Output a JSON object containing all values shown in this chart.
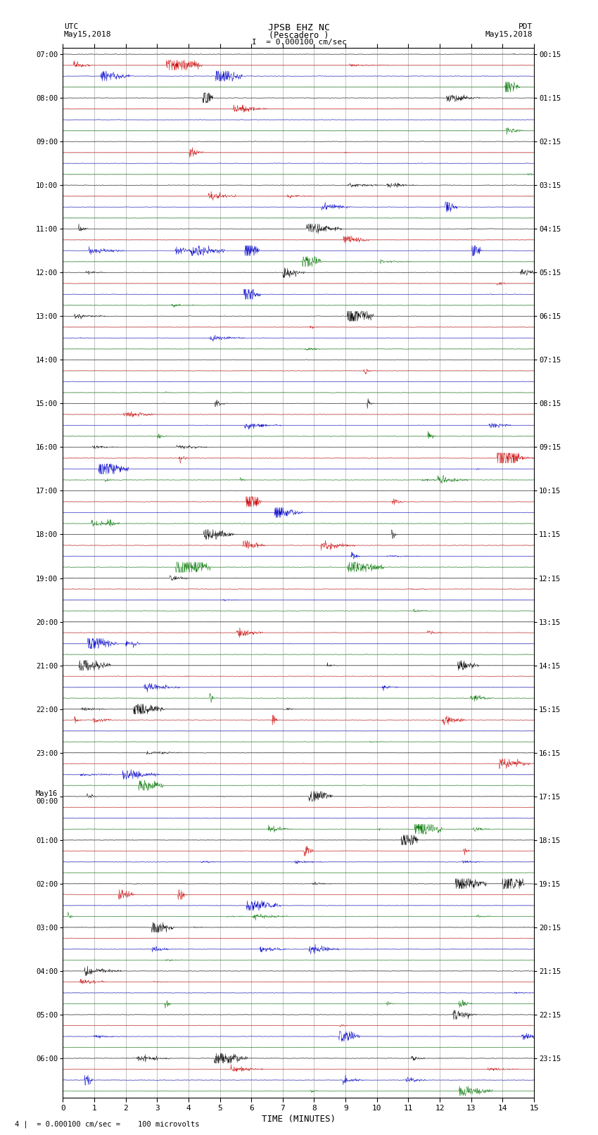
{
  "title_line1": "JPSB EHZ NC",
  "title_line2": "(Pescadero )",
  "scale_text": "I  = 0.000100 cm/sec",
  "bottom_text": "= 0.000100 cm/sec =    100 microvolts",
  "xlabel": "TIME (MINUTES)",
  "utc_line1": "UTC",
  "utc_line2": "May15,2018",
  "pdt_line1": "PDT",
  "pdt_line2": "May15,2018",
  "left_times": [
    "07:00",
    "",
    "",
    "",
    "08:00",
    "",
    "",
    "",
    "09:00",
    "",
    "",
    "",
    "10:00",
    "",
    "",
    "",
    "11:00",
    "",
    "",
    "",
    "12:00",
    "",
    "",
    "",
    "13:00",
    "",
    "",
    "",
    "14:00",
    "",
    "",
    "",
    "15:00",
    "",
    "",
    "",
    "16:00",
    "",
    "",
    "",
    "17:00",
    "",
    "",
    "",
    "18:00",
    "",
    "",
    "",
    "19:00",
    "",
    "",
    "",
    "20:00",
    "",
    "",
    "",
    "21:00",
    "",
    "",
    "",
    "22:00",
    "",
    "",
    "",
    "23:00",
    "",
    "",
    "",
    "May16\n00:00",
    "",
    "",
    "",
    "01:00",
    "",
    "",
    "",
    "02:00",
    "",
    "",
    "",
    "03:00",
    "",
    "",
    "",
    "04:00",
    "",
    "",
    "",
    "05:00",
    "",
    "",
    "",
    "06:00",
    "",
    "",
    ""
  ],
  "right_times": [
    "00:15",
    "",
    "",
    "",
    "01:15",
    "",
    "",
    "",
    "02:15",
    "",
    "",
    "",
    "03:15",
    "",
    "",
    "",
    "04:15",
    "",
    "",
    "",
    "05:15",
    "",
    "",
    "",
    "06:15",
    "",
    "",
    "",
    "07:15",
    "",
    "",
    "",
    "08:15",
    "",
    "",
    "",
    "09:15",
    "",
    "",
    "",
    "10:15",
    "",
    "",
    "",
    "11:15",
    "",
    "",
    "",
    "12:15",
    "",
    "",
    "",
    "13:15",
    "",
    "",
    "",
    "14:15",
    "",
    "",
    "",
    "15:15",
    "",
    "",
    "",
    "16:15",
    "",
    "",
    "",
    "17:15",
    "",
    "",
    "",
    "18:15",
    "",
    "",
    "",
    "19:15",
    "",
    "",
    "",
    "20:15",
    "",
    "",
    "",
    "21:15",
    "",
    "",
    "",
    "22:15",
    "",
    "",
    "",
    "23:15",
    "",
    "",
    ""
  ],
  "trace_colors": [
    "#000000",
    "#cc0000",
    "#0000cc",
    "#007700"
  ],
  "n_rows": 96,
  "n_minutes": 15,
  "xmin": 0,
  "xmax": 15,
  "bg_color": "#ffffff",
  "grid_color": "#888888",
  "seed": 12345
}
